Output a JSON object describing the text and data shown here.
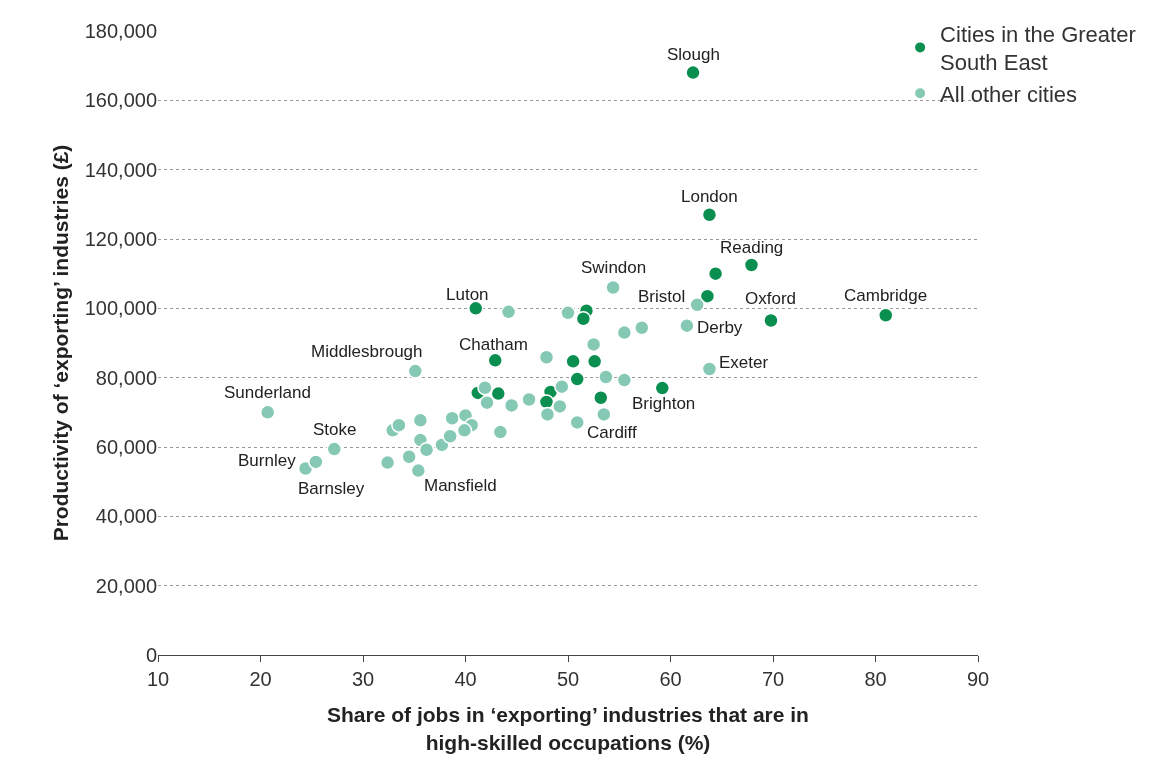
{
  "chart_data": {
    "type": "scatter",
    "xlabel": "Share of jobs in ‘exporting’ industries that are in\nhigh-skilled occupations (%)",
    "ylabel": "Productivity of ‘exporting’ industries (£)",
    "xlim": [
      10,
      90
    ],
    "xticks": [
      10,
      20,
      30,
      40,
      50,
      60,
      70,
      80,
      90
    ],
    "ylim": [
      0,
      180000
    ],
    "yticks": [
      0,
      {
        "value": 20000,
        "label": "20,000"
      },
      {
        "value": 40000,
        "label": "40,000"
      },
      {
        "value": 60000,
        "label": "60,000"
      },
      {
        "value": 80000,
        "label": "80,000"
      },
      {
        "value": 100000,
        "label": "100,000"
      },
      {
        "value": 120000,
        "label": "120,000"
      },
      {
        "value": 140000,
        "label": "140,000"
      },
      {
        "value": 160000,
        "label": "160,000"
      },
      {
        "value": 180000,
        "label": "180,000"
      }
    ],
    "grid": "y",
    "legend": "top right",
    "marker": "circle",
    "series": [
      {
        "name": "Cities in the Greater\nSouth East",
        "color": "#0a8f50",
        "x": [
          62.2,
          63.8,
          67.9,
          64.4,
          63.6,
          69.8,
          81.0,
          41.0,
          51.8,
          51.5,
          42.9,
          50.5,
          52.6,
          50.9,
          59.2,
          41.2,
          43.2,
          48.3,
          53.2,
          47.9
        ],
        "values": [
          168000,
          127000,
          112500,
          110000,
          103500,
          96500,
          98000,
          100000,
          99300,
          97000,
          85000,
          84700,
          84700,
          79600,
          77000,
          75600,
          75400,
          75900,
          74200,
          73000
        ]
      },
      {
        "name": "All other cities",
        "color": "#85c9b4",
        "x": [
          54.4,
          62.6,
          61.6,
          57.2,
          55.5,
          52.5,
          44.2,
          50.0,
          47.9,
          35.1,
          63.8,
          53.7,
          55.5,
          49.4,
          41.9,
          42.1,
          44.5,
          46.2,
          48.0,
          49.2,
          50.9,
          53.5,
          43.4,
          20.7,
          27.2,
          24.4,
          25.4,
          32.4,
          32.9,
          33.5,
          35.6,
          35.6,
          34.5,
          35.4,
          36.2,
          37.7,
          38.5,
          38.7,
          40.0,
          40.6,
          39.9
        ],
        "values": [
          106000,
          101000,
          95000,
          94400,
          93000,
          89600,
          99000,
          98700,
          85900,
          81900,
          82500,
          80200,
          79300,
          77400,
          77100,
          72800,
          72000,
          73700,
          69400,
          71700,
          67100,
          69400,
          64300,
          70000,
          59400,
          53800,
          55700,
          55500,
          64800,
          66300,
          67700,
          62000,
          57200,
          53200,
          59200,
          60600,
          63100,
          68300,
          69100,
          66300,
          64800
        ]
      }
    ],
    "annotations": [
      {
        "text": "Slough",
        "x": 62.2,
        "y": 168000
      },
      {
        "text": "London",
        "x": 63.8,
        "y": 127000
      },
      {
        "text": "Reading",
        "x": 67.9,
        "y": 112500
      },
      {
        "text": "Swindon",
        "x": 54.4,
        "y": 106000
      },
      {
        "text": "Bristol",
        "x": 62.6,
        "y": 101000
      },
      {
        "text": "Oxford",
        "x": 69.8,
        "y": 96500
      },
      {
        "text": "Cambridge",
        "x": 81.0,
        "y": 98000
      },
      {
        "text": "Derby",
        "x": 61.6,
        "y": 95000
      },
      {
        "text": "Exeter",
        "x": 63.8,
        "y": 82500
      },
      {
        "text": "Brighton",
        "x": 59.2,
        "y": 77000
      },
      {
        "text": "Cardiff",
        "x": 50.9,
        "y": 67100
      },
      {
        "text": "Chatham",
        "x": 42.9,
        "y": 85000
      },
      {
        "text": "Luton",
        "x": 41.0,
        "y": 100000
      },
      {
        "text": "Middlesbrough",
        "x": 35.1,
        "y": 81900
      },
      {
        "text": "Sunderland",
        "x": 20.7,
        "y": 70000
      },
      {
        "text": "Stoke",
        "x": 27.2,
        "y": 59400
      },
      {
        "text": "Burnley",
        "x": 24.4,
        "y": 53800
      },
      {
        "text": "Barnsley",
        "x": 25.4,
        "y": 55700
      },
      {
        "text": "Mansfield",
        "x": 35.4,
        "y": 53200
      }
    ]
  }
}
